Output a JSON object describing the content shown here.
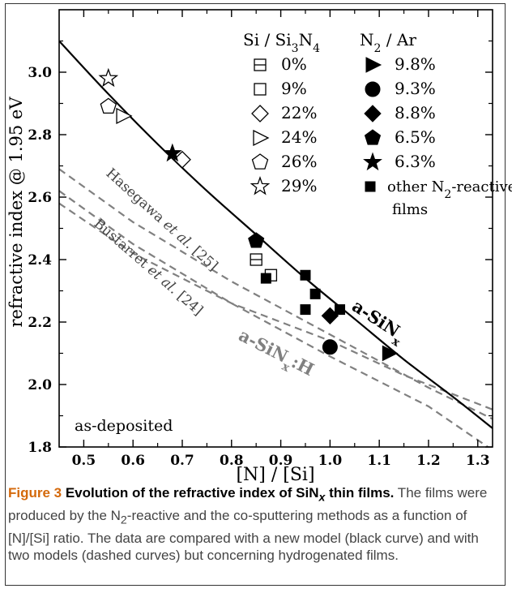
{
  "chart_data": {
    "type": "scatter",
    "xlabel": "[N] / [Si]",
    "ylabel": "refractive index @ 1.95 eV",
    "xlim": [
      0.45,
      1.33
    ],
    "ylim": [
      1.8,
      3.2
    ],
    "xticks": [
      0.5,
      0.6,
      0.7,
      0.8,
      0.9,
      1.0,
      1.1,
      1.2,
      1.3
    ],
    "xtick_labels": [
      "0.5",
      "0.6",
      "0.7",
      "0.8",
      "0.9",
      "1.0",
      "1.1",
      "1.2",
      "1.3"
    ],
    "yticks": [
      1.8,
      2.0,
      2.2,
      2.4,
      2.6,
      2.8,
      3.0
    ],
    "ytick_labels": [
      "1.8",
      "2.0",
      "2.2",
      "2.4",
      "2.6",
      "2.8",
      "3.0"
    ],
    "grid": false,
    "legend_position": "top-right",
    "legend_headers": {
      "cosputter_pre": "Si / Si",
      "cosputter_sub1": "3",
      "cosputter_mid": "N",
      "cosputter_sub2": "4",
      "reactive_pre": "N",
      "reactive_sub": "2",
      "reactive_post": " / Ar"
    },
    "cosputter_series": [
      {
        "name": "0%",
        "marker": "boxminus",
        "points": [
          [
            0.85,
            2.4
          ]
        ]
      },
      {
        "name": "9%",
        "marker": "square",
        "points": [
          [
            0.88,
            2.35
          ]
        ]
      },
      {
        "name": "22%",
        "marker": "diamond",
        "points": [
          [
            0.7,
            2.72
          ]
        ]
      },
      {
        "name": "24%",
        "marker": "triangle-right",
        "points": [
          [
            0.58,
            2.86
          ]
        ]
      },
      {
        "name": "26%",
        "marker": "pentagon",
        "points": [
          [
            0.55,
            2.89
          ]
        ]
      },
      {
        "name": "29%",
        "marker": "star",
        "points": [
          [
            0.55,
            2.98
          ]
        ]
      }
    ],
    "reactive_series": [
      {
        "name": "9.8%",
        "marker": "triangle-right-filled",
        "points": [
          [
            1.12,
            2.1
          ]
        ]
      },
      {
        "name": "9.3%",
        "marker": "circle-filled",
        "points": [
          [
            1.0,
            2.12
          ]
        ]
      },
      {
        "name": "8.8%",
        "marker": "diamond-filled",
        "points": [
          [
            1.0,
            2.22
          ]
        ]
      },
      {
        "name": "6.5%",
        "marker": "pentagon-filled",
        "points": [
          [
            0.85,
            2.46
          ]
        ]
      },
      {
        "name": "6.3%",
        "marker": "star-filled",
        "points": [
          [
            0.68,
            2.74
          ]
        ]
      },
      {
        "name_pre": "other N",
        "name_sub": "2",
        "name_post": "-reactive",
        "name_line2": "films",
        "marker": "square-filled",
        "points": [
          [
            0.87,
            2.34
          ],
          [
            0.95,
            2.35
          ],
          [
            0.97,
            2.29
          ],
          [
            0.95,
            2.24
          ],
          [
            1.02,
            2.24
          ]
        ]
      }
    ],
    "model_curve": {
      "style": "solid",
      "color": "#000000",
      "label_main": "a-SiN",
      "label_sub": "x",
      "points": [
        [
          0.45,
          3.1
        ],
        [
          0.55,
          2.93
        ],
        [
          0.65,
          2.77
        ],
        [
          0.75,
          2.62
        ],
        [
          0.85,
          2.48
        ],
        [
          0.95,
          2.34
        ],
        [
          1.05,
          2.21
        ],
        [
          1.15,
          2.08
        ],
        [
          1.25,
          1.96
        ],
        [
          1.33,
          1.86
        ]
      ]
    },
    "hydrogenated_curves": [
      {
        "label_main": "Hasegawa ",
        "label_italic": "et al.",
        "label_ref": " [25]",
        "color": "#808080",
        "points": [
          [
            0.45,
            2.69
          ],
          [
            0.6,
            2.52
          ],
          [
            0.8,
            2.33
          ],
          [
            1.0,
            2.16
          ],
          [
            1.2,
            1.99
          ],
          [
            1.33,
            1.89
          ]
        ]
      },
      {
        "label_main": "Bustarret ",
        "label_italic": "et al.",
        "label_ref": " [24]",
        "color": "#808080",
        "points": [
          [
            0.45,
            2.62
          ],
          [
            0.6,
            2.45
          ],
          [
            0.8,
            2.26
          ],
          [
            1.0,
            2.09
          ],
          [
            1.2,
            1.93
          ],
          [
            1.33,
            1.79
          ]
        ]
      },
      {
        "color": "#808080",
        "points": [
          [
            0.45,
            2.58
          ],
          [
            0.6,
            2.42
          ],
          [
            0.8,
            2.26
          ],
          [
            1.0,
            2.14
          ],
          [
            1.15,
            2.03
          ],
          [
            1.33,
            1.92
          ]
        ]
      }
    ],
    "hydro_label": {
      "main": "a-SiN",
      "sub": "x",
      "post": ":H"
    },
    "annotation": "as-deposited"
  },
  "caption": {
    "figure": "Figure 3",
    "title": " Evolution of the refractive index of SiN",
    "title_sub": "x",
    "title_end": " thin films.",
    "body_1": " The films were produced by the N",
    "body_sub": "2",
    "body_2": "-reactive and the co-sputtering methods as a function of [N]/[Si] ratio. The data are compared with a new model (black curve) and with two models (dashed curves) but concerning hydrogenated films."
  }
}
